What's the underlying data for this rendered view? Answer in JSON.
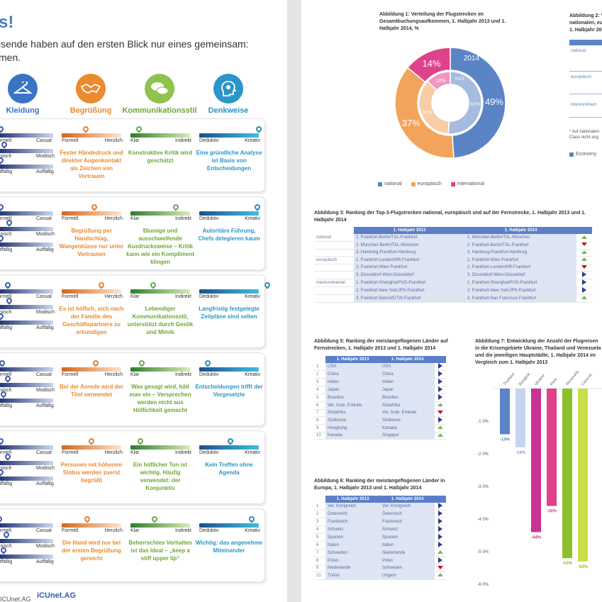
{
  "left": {
    "title": "s!",
    "subtitle_line1": "isende haben auf den ersten Blick nur eines gemeinsam:",
    "subtitle_line2": "men.",
    "categories": [
      {
        "label": "Kleidung",
        "color": "#3b74c5",
        "icon": "hanger-icon"
      },
      {
        "label": "Begrüßung",
        "color": "#ea8a2e",
        "icon": "handshake-icon"
      },
      {
        "label": "Kommunikationsstil",
        "color": "#8fc34c",
        "icon": "speech-bubbles-icon"
      },
      {
        "label": "Denkweise",
        "color": "#2b96c7",
        "icon": "head-gears-icon"
      }
    ],
    "scale_labels": {
      "kleid": [
        "ormell",
        "Casual"
      ],
      "kleid2": [
        "ssisch",
        "Modisch"
      ],
      "kleid3": [
        "uffällig",
        "Auffällig"
      ],
      "begr": [
        "Formell",
        "Herzlich"
      ],
      "komm": [
        "Klar",
        "Indirekt"
      ],
      "denk": [
        "Deduktiv",
        "Kreativ"
      ]
    },
    "cards": [
      {
        "begr": "Fester Händedruck und direkter Augenkontakt als Zeichen von Vertrauen",
        "komm": "Konstruktive Kritik wird geschätzt",
        "denk": "Eine gründliche Analyse ist Basis von Entscheidungen"
      },
      {
        "begr": "Begrüßung per Handschlag, Wangenküsse nur unter Vertrauten",
        "komm": "Blumige und ausschweifende Ausdrucksweise – Kritik kann wie ein Kompliment klingen",
        "denk": "Autoritäre Führung, Chefs delegieren kaum"
      },
      {
        "begr": "Es ist höflich, sich nach der Familie des Geschäftspartners zu erkundigen",
        "komm": "Lebendiger Kommunikationsstil, unterstützt durch Gestik und Mimik",
        "denk": "Langfristig festgelegte Zeitpläne sind selten"
      },
      {
        "begr": "Bei der Anrede wird der Titel verwendet",
        "komm": "Was gesagt wird, hält man ein – Versprechen werden nicht aus Höflichkeit gemacht",
        "denk": "Entscheidungen trifft der Vorgesetzte"
      },
      {
        "begr": "Personen mit höherem Status werden zuerst begrüßt",
        "komm": "Ein höflicher Ton ist wichtig. Häufig verwendet: der Konjunktiv",
        "denk": "Kein Treffen ohne Agenda"
      },
      {
        "begr": "Die Hand wird nur bei der ersten Begrüßung gereicht",
        "komm": "Beherrschtes Verhalten ist das Ideal – „keep a stiff upper lip“",
        "denk": "Wichtig: das angenehme Miteinander"
      }
    ],
    "footer": "ICUnet.AG",
    "logo": "iCUnet.AG"
  },
  "fig1": {
    "title": "Abbildung 1: Verteilung der Flugstrecken im Gesamtbuchungsaufkommen, 1. Halbjahr 2013 und 1. Halbjahr 2014, %",
    "outer_label": "2014",
    "inner_label": "2013",
    "legend": [
      "national",
      "europäisch",
      "international"
    ],
    "colors": [
      "#5b84c7",
      "#f3a45c",
      "#e0418b"
    ]
  },
  "fig2": {
    "title_lines": [
      "Abbildung 2: V",
      "nationalen, eu",
      "1. Halbjahr 20"
    ],
    "row_labels": [
      "national",
      "europäisch",
      "interkontinent"
    ],
    "note": "* Auf nationalen Class nicht ang",
    "legend": "Economy"
  },
  "fig3": {
    "title": "Abbildung 3: Ranking der Top-3-Flugstrecken national, europäisch und auf der Fernstrecke, 1. Halbjahr 2013 und 1. Halbjahr 2014",
    "h2013": "1. Halbjahr 2013",
    "h2014": "1. Halbjahr 2014",
    "rows": [
      {
        "g": "national",
        "a": "1. Frankfurt-Berlin/TXL-Frankfurt",
        "b": "1. München-Berlin/TXL-München",
        "t": "up"
      },
      {
        "g": "",
        "a": "2. München-Berlin/TXL-München",
        "b": "2. Frankfurt-Berlin/TXL-Frankfurt",
        "t": "dn"
      },
      {
        "g": "",
        "a": "3. Hamburg-Frankfurt-Hamburg",
        "b": "3. Hamburg-Frankfurt-Hamburg",
        "t": "up"
      },
      {
        "g": "europäisch",
        "a": "1. Frankfurt-London/HR-Frankfurt",
        "b": "1. Frankfurt-Wien-Frankfurt",
        "t": "up"
      },
      {
        "g": "",
        "a": "2. Frankfurt-Wien-Frankfurt",
        "b": "2. Frankfurt-London/HR-Frankfurt",
        "t": "dn"
      },
      {
        "g": "",
        "a": "3. Düsseldorf-Wien-Düsseldorf",
        "b": "3. Düsseldorf-Wien-Düsseldorf",
        "t": "rt"
      },
      {
        "g": "interkontinental",
        "a": "1. Frankfurt-Shanghai/PVG-Frankfurt",
        "b": "1. Frankfurt-Shanghai/PVG-Frankfurt",
        "t": "rt"
      },
      {
        "g": "",
        "a": "2. Frankfurt-New York/JFK-Frankfurt",
        "b": "2. Frankfurt-New York/JFK-Frankfurt",
        "t": "rt"
      },
      {
        "g": "",
        "a": "3. Frankfurt-Detroit/DTW-Frankfurt",
        "b": "3. Frankfurt-San Francisco-Frankfurt",
        "t": "up"
      }
    ]
  },
  "fig5": {
    "title": "Abbildung 5: Ranking der meistangeflogenen Länder auf Fernstrecken, 1. Halbjahr 2013 und 1. Halbjahr 2014",
    "h2013": "1. Halbjahr 2013",
    "h2014": "1. Halbjahr 2014",
    "rows": [
      {
        "n": "1",
        "a": "USA",
        "b": "USA",
        "t": "rt"
      },
      {
        "n": "2",
        "a": "China",
        "b": "China",
        "t": "rt"
      },
      {
        "n": "3",
        "a": "Indien",
        "b": "Indien",
        "t": "rt"
      },
      {
        "n": "4",
        "a": "Japan",
        "b": "Japan",
        "t": "rt"
      },
      {
        "n": "5",
        "a": "Brasilien",
        "b": "Brasilien",
        "t": "rt"
      },
      {
        "n": "6",
        "a": "Ver. Arab. Emirate",
        "b": "Südafrika",
        "t": "up"
      },
      {
        "n": "7",
        "a": "Südafrika",
        "b": "Ver. Arab. Emirate",
        "t": "dn"
      },
      {
        "n": "8",
        "a": "Südkorea",
        "b": "Südkorea",
        "t": "rt"
      },
      {
        "n": "9",
        "a": "Hongkong",
        "b": "Kanada",
        "t": "up"
      },
      {
        "n": "10",
        "a": "Kanada",
        "b": "Singapur",
        "t": "up"
      }
    ]
  },
  "fig6": {
    "title": "Abbildung 6: Ranking der meistangeflogenen Länder in Europa, 1. Halbjahr 2013 und 1. Halbjahr 2014",
    "h2013": "1. Halbjahr 2013",
    "h2014": "1. Halbjahr 2014",
    "rows": [
      {
        "n": "1",
        "a": "Ver. Königreich",
        "b": "Ver. Königreich",
        "t": "rt"
      },
      {
        "n": "2",
        "a": "Österreich",
        "b": "Österreich",
        "t": "rt"
      },
      {
        "n": "3",
        "a": "Frankreich",
        "b": "Frankreich",
        "t": "rt"
      },
      {
        "n": "4",
        "a": "Schweiz",
        "b": "Schweiz",
        "t": "rt"
      },
      {
        "n": "5",
        "a": "Spanien",
        "b": "Spanien",
        "t": "rt"
      },
      {
        "n": "6",
        "a": "Italien",
        "b": "Italien",
        "t": "rt"
      },
      {
        "n": "7",
        "a": "Schweden",
        "b": "Niederlande",
        "t": "up"
      },
      {
        "n": "8",
        "a": "Polen",
        "b": "Polen",
        "t": "rt"
      },
      {
        "n": "9",
        "a": "Niederlande",
        "b": "Schweden",
        "t": "dn"
      },
      {
        "n": "10",
        "a": "Türkei",
        "b": "Ungarn",
        "t": "up"
      }
    ]
  },
  "fig7": {
    "title": "Abbildung 7: Entwicklung der Anzahl der Flugreisen in die Krisengebiete Ukraine, Thailand und Venezuela und die jeweiligen Hauptstädte, 1. Halbjahr 2014 im Vergleich zum 1. Halbjahr 2013"
  },
  "chart_data": [
    {
      "type": "pie",
      "title": "Abbildung 1: Verteilung der Flugstrecken im Gesamtbuchungsaufkommen, 1. Halbjahr 2013 und 1. Halbjahr 2014, %",
      "series": [
        {
          "name": "2014",
          "values": [
            49,
            37,
            14
          ]
        },
        {
          "name": "2013",
          "values": [
            51,
            36,
            13
          ]
        }
      ],
      "categories": [
        "national",
        "europäisch",
        "international"
      ]
    },
    {
      "type": "bar",
      "title": "Abbildung 7",
      "categories": [
        "Thailand",
        "Bangkok",
        "Ukraine",
        "Kiew",
        "Venezuela",
        "Caracas"
      ],
      "values": [
        -14,
        -18,
        -44,
        -36,
        -52,
        -53
      ],
      "labels": [
        "-14%",
        "-18%",
        "-44%",
        "-36%",
        "-52%",
        "-53%"
      ],
      "colors": [
        "#5b84c7",
        "#c5d5ef",
        "#c83293",
        "#e0418b",
        "#8dbf2a",
        "#c9dd46"
      ],
      "yticks": [
        "-1 0%",
        "-2 0%",
        "-3 0%",
        "-4 0%",
        "-5 0%",
        "-6 0%"
      ],
      "ylim": [
        -60,
        0
      ]
    }
  ]
}
